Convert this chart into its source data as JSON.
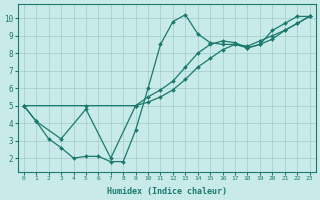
{
  "xlabel": "Humidex (Indice chaleur)",
  "bg_color": "#c8eae8",
  "grid_color": "#a0ccc8",
  "line_color": "#1a7a6e",
  "yticks": [
    2,
    3,
    4,
    5,
    6,
    7,
    8,
    9,
    10
  ],
  "xticks": [
    0,
    1,
    2,
    3,
    4,
    5,
    6,
    7,
    8,
    9,
    10,
    11,
    12,
    13,
    14,
    15,
    16,
    17,
    18,
    19,
    20,
    21,
    22,
    23
  ],
  "series": [
    {
      "x": [
        0,
        1,
        2,
        3,
        4,
        5,
        6,
        7,
        8,
        9,
        10,
        11,
        12,
        13,
        14,
        15,
        16,
        17,
        18,
        19,
        20,
        21,
        22,
        23
      ],
      "y": [
        5.0,
        4.1,
        3.1,
        2.6,
        2.0,
        2.1,
        2.1,
        1.8,
        1.8,
        3.6,
        6.0,
        8.5,
        9.8,
        10.2,
        9.1,
        8.6,
        8.5,
        8.5,
        8.3,
        8.5,
        9.3,
        9.7,
        10.1,
        10.1
      ]
    },
    {
      "x": [
        0,
        1,
        3,
        5,
        7,
        9,
        10,
        11,
        12,
        13,
        14,
        15,
        16,
        17,
        18,
        19,
        20,
        21,
        22,
        23
      ],
      "y": [
        5.0,
        4.1,
        3.1,
        4.8,
        2.0,
        5.0,
        5.5,
        5.9,
        6.4,
        7.2,
        8.0,
        8.5,
        8.7,
        8.6,
        8.3,
        8.5,
        8.8,
        9.3,
        9.7,
        10.1
      ]
    },
    {
      "x": [
        0,
        5,
        9,
        10,
        11,
        12,
        13,
        14,
        15,
        16,
        17,
        18,
        19,
        20,
        21,
        22,
        23
      ],
      "y": [
        5.0,
        5.0,
        5.0,
        5.2,
        5.5,
        5.9,
        6.5,
        7.2,
        7.7,
        8.2,
        8.5,
        8.4,
        8.7,
        9.0,
        9.3,
        9.7,
        10.1
      ]
    }
  ]
}
